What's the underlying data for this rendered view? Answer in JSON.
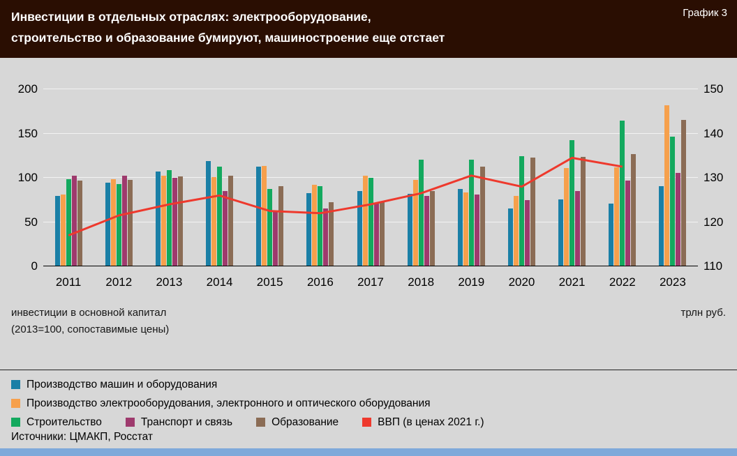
{
  "header": {
    "title_line1": "Инвестиции в отдельных отраслях: электрооборудование,",
    "title_line2": "строительство и образование бумируют, машиностроение еще отстает",
    "tag": "График 3"
  },
  "axis_notes": {
    "left_line1": "инвестиции в основной капитал",
    "left_line2": "(2013=100, сопоставимые цены)",
    "right": "трлн руб."
  },
  "source": "Источники: ЦМАКП, Росстат",
  "colors": {
    "header_bg": "#2a0e02",
    "page_bg": "#d7d7d7",
    "gridline": "#f2f2f2",
    "bottom_strip": "#7fa9da"
  },
  "chart_data": {
    "type": "bar",
    "title": "Инвестиции в отдельных отраслях: электрооборудование, строительство и образование бумируют, машиностроение еще отстает",
    "categories": [
      "2011",
      "2012",
      "2013",
      "2014",
      "2015",
      "2016",
      "2017",
      "2018",
      "2019",
      "2020",
      "2021",
      "2022",
      "2023"
    ],
    "series": [
      {
        "name": "Производство машин и оборудования",
        "color": "#1a7fa6",
        "axis": "left",
        "values": [
          79,
          94,
          106,
          118,
          112,
          82,
          84,
          81,
          87,
          65,
          75,
          70,
          90
        ]
      },
      {
        "name": "Производство электрооборудования, электронного и оптического оборудования",
        "color": "#f6a04c",
        "axis": "left",
        "values": [
          80,
          98,
          102,
          100,
          113,
          91,
          102,
          97,
          83,
          79,
          110,
          111,
          181
        ]
      },
      {
        "name": "Строительство",
        "color": "#13a95e",
        "axis": "left",
        "values": [
          98,
          92,
          108,
          112,
          87,
          90,
          99,
          120,
          120,
          124,
          142,
          164,
          146
        ]
      },
      {
        "name": "Транспорт и связь",
        "color": "#9e3a6d",
        "axis": "left",
        "values": [
          102,
          102,
          99,
          84,
          62,
          65,
          70,
          79,
          80,
          74,
          84,
          96,
          105
        ]
      },
      {
        "name": "Образование",
        "color": "#8b6c55",
        "axis": "left",
        "values": [
          96,
          97,
          101,
          102,
          90,
          72,
          72,
          84,
          112,
          122,
          123,
          126,
          165
        ]
      }
    ],
    "line": {
      "name": "ВВП (в ценах 2021 г.)",
      "color": "#ee392d",
      "axis": "right",
      "values": [
        117,
        121.5,
        124,
        126,
        122.5,
        122,
        124,
        126.5,
        130.5,
        128,
        134.5,
        132.5,
        null
      ]
    },
    "left_axis": {
      "label": "инвестиции в основной капитал (2013=100, сопоставимые цены)",
      "min": 0,
      "max": 200,
      "ticks": [
        0,
        50,
        100,
        150,
        200
      ]
    },
    "right_axis": {
      "label": "трлн руб.",
      "min": 110,
      "max": 150,
      "ticks": [
        110,
        120,
        130,
        140,
        150
      ]
    },
    "grid": "horizontal",
    "legend_position": "bottom"
  },
  "legend": {
    "rows": [
      [
        "Производство машин и оборудования"
      ],
      [
        "Производство электрооборудования, электронного и оптического оборудования"
      ],
      [
        "Строительство",
        "Транспорт и связь",
        "Образование",
        "ВВП (в ценах 2021 г.)"
      ]
    ]
  }
}
